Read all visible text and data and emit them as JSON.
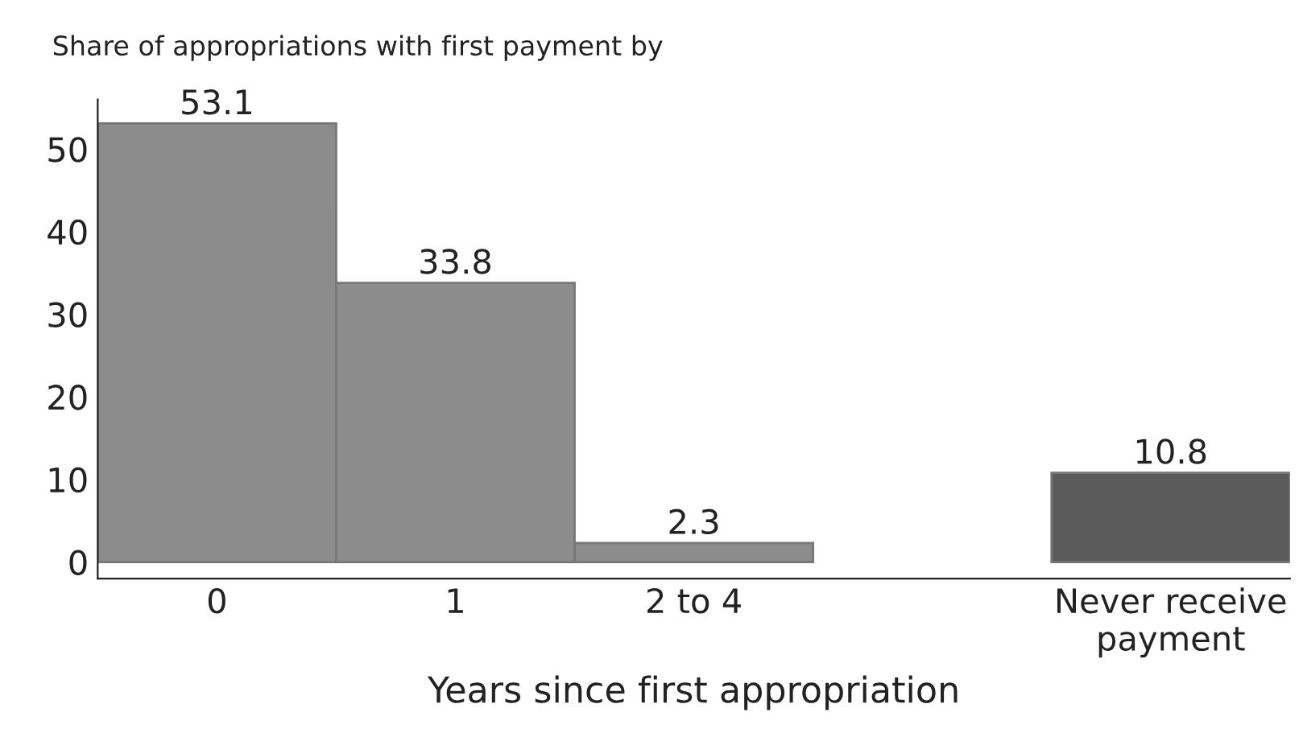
{
  "chart_data": {
    "type": "bar",
    "ylabel": "Share of appropriations with first payment by",
    "xlabel": "Years since first appropriation",
    "categories": [
      "0",
      "1",
      "2 to 4",
      null,
      "Never receive\npayment"
    ],
    "values": [
      53.1,
      33.8,
      2.3,
      null,
      10.8
    ],
    "colors": [
      "#8c8c8c",
      "#8c8c8c",
      "#8c8c8c",
      "#8c8c8c",
      "#5a5a5a"
    ],
    "ylim": [
      -2,
      56
    ],
    "yticks": [
      0,
      10,
      20,
      30,
      40,
      50
    ],
    "grid": false,
    "data_labels": true
  }
}
